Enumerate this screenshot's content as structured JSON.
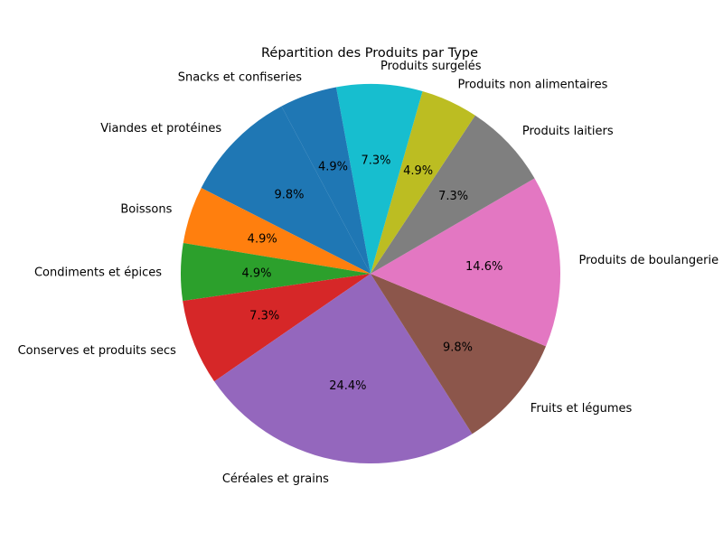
{
  "chart_data": {
    "type": "pie",
    "title": "Répartition des Produits par Type",
    "slices": [
      {
        "label": "Viandes et protéines",
        "value": 4,
        "pct_label": "9.8%",
        "color": "#1f77b4"
      },
      {
        "label": "Boissons",
        "value": 2,
        "pct_label": "4.9%",
        "color": "#ff7f0e"
      },
      {
        "label": "Condiments et épices",
        "value": 2,
        "pct_label": "4.9%",
        "color": "#2ca02c"
      },
      {
        "label": "Conserves et produits secs",
        "value": 3,
        "pct_label": "7.3%",
        "color": "#d62728"
      },
      {
        "label": "Céréales et grains",
        "value": 10,
        "pct_label": "24.4%",
        "color": "#9467bd"
      },
      {
        "label": "Fruits et légumes",
        "value": 4,
        "pct_label": "9.8%",
        "color": "#8c564b"
      },
      {
        "label": "Produits de boulangerie",
        "value": 6,
        "pct_label": "14.6%",
        "color": "#e377c2"
      },
      {
        "label": "Produits laitiers",
        "value": 3,
        "pct_label": "7.3%",
        "color": "#7f7f7f"
      },
      {
        "label": "Produits non alimentaires",
        "value": 2,
        "pct_label": "4.9%",
        "color": "#bcbd22"
      },
      {
        "label": "Produits surgelés",
        "value": 3,
        "pct_label": "7.3%",
        "color": "#17becf"
      },
      {
        "label": "Snacks et confiseries",
        "value": 2,
        "pct_label": "4.9%",
        "color": "#1f77b4"
      }
    ]
  }
}
